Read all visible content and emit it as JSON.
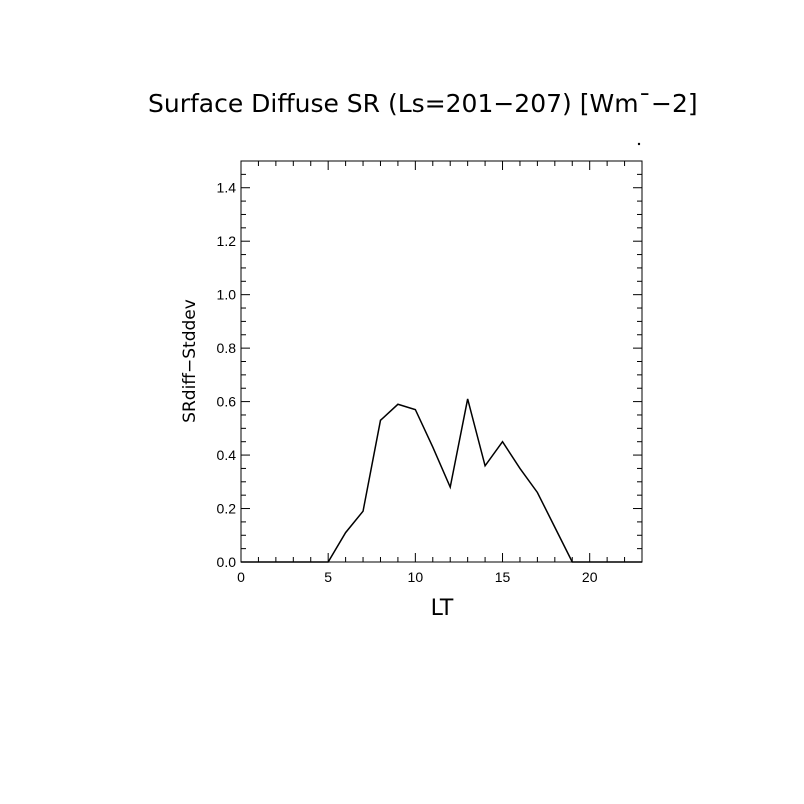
{
  "chart_data": {
    "type": "line",
    "title": "Surface Diffuse SR (Ls=201−207) [Wm¯−2]",
    "xlabel": "LT",
    "ylabel": "SRdiff−Stddev",
    "xlim": [
      0,
      23
    ],
    "ylim": [
      0,
      1.5
    ],
    "x_ticks": [
      "0",
      "5",
      "10",
      "15",
      "20"
    ],
    "x_tick_values": [
      0,
      5,
      10,
      15,
      20
    ],
    "y_ticks": [
      "0.0",
      "0.2",
      "0.4",
      "0.6",
      "0.8",
      "1.0",
      "1.2",
      "1.4"
    ],
    "y_tick_values": [
      0,
      0.2,
      0.4,
      0.6,
      0.8,
      1.0,
      1.2,
      1.4
    ],
    "grid": false,
    "colors": {
      "line": "#000000",
      "frame": "#000000",
      "background": "#ffffff"
    },
    "series": [
      {
        "x": [
          0,
          1,
          2,
          3,
          4,
          5,
          6,
          7,
          8,
          9,
          10,
          11,
          12,
          13,
          14,
          15,
          16,
          17,
          18,
          19,
          20,
          21,
          22,
          23
        ],
        "y": [
          0,
          0,
          0,
          0,
          0,
          0,
          0.11,
          0.19,
          0.53,
          0.59,
          0.57,
          0.43,
          0.28,
          0.61,
          0.36,
          0.45,
          0.35,
          0.26,
          0.13,
          0,
          0,
          0,
          0,
          0
        ]
      }
    ]
  }
}
